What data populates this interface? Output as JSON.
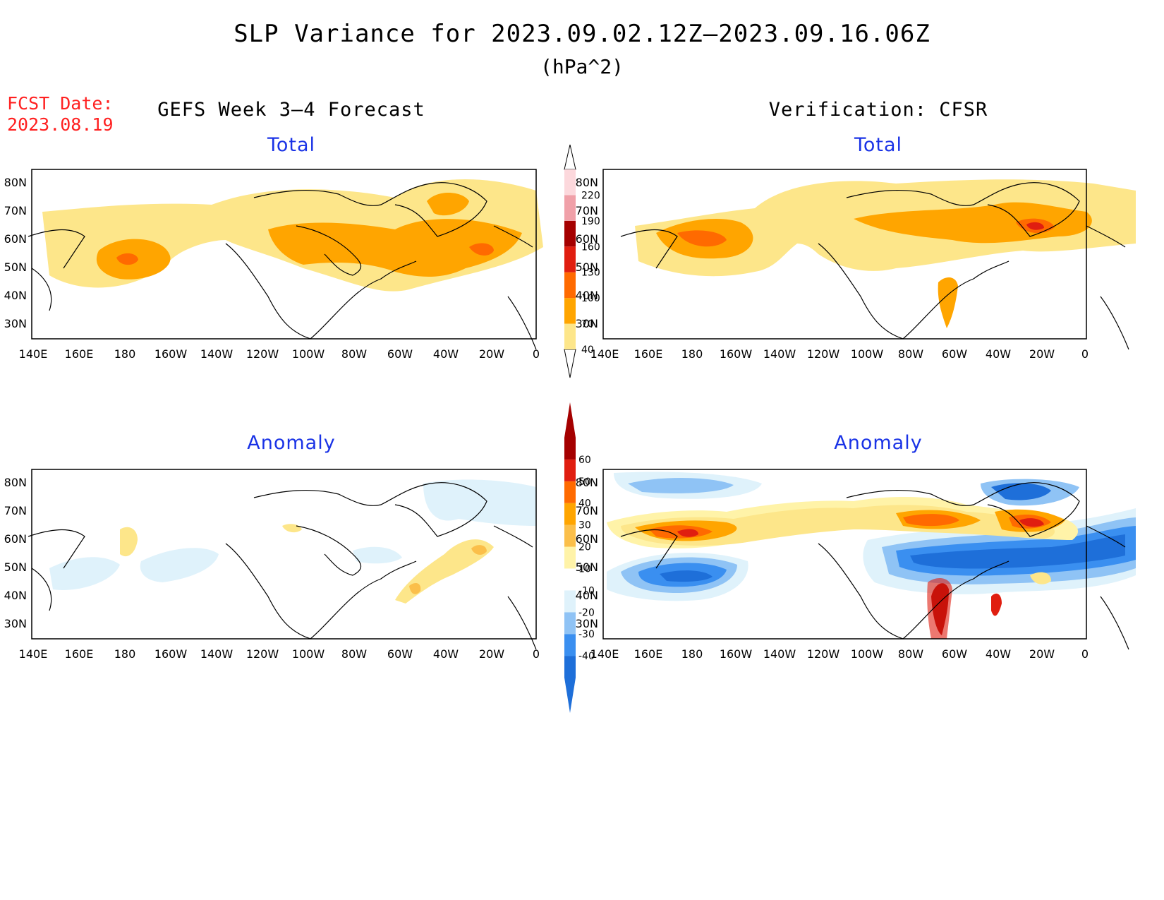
{
  "title": "SLP Variance for 2023.09.02.12Z–2023.09.16.06Z",
  "units": "(hPa^2)",
  "fcst_date": {
    "label": "FCST Date:",
    "value": "2023.08.19"
  },
  "columns": {
    "left": "GEFS Week 3–4 Forecast",
    "right": "Verification: CFSR"
  },
  "panels": {
    "top_left": {
      "label": "Total"
    },
    "top_right": {
      "label": "Total"
    },
    "bottom_left": {
      "label": "Anomaly"
    },
    "bottom_right": {
      "label": "Anomaly"
    }
  },
  "axes": {
    "lon_ticks": [
      "140E",
      "160E",
      "180",
      "160W",
      "140W",
      "120W",
      "100W",
      "80W",
      "60W",
      "40W",
      "20W",
      "0"
    ],
    "lat_ticks": [
      "80N",
      "70N",
      "60N",
      "50N",
      "40N",
      "30N"
    ],
    "lon_range_deg_east": [
      140,
      360
    ],
    "lat_range": [
      25,
      85
    ]
  },
  "colorbar_total": {
    "levels": [
      "40",
      "70",
      "100",
      "130",
      "160",
      "190",
      "220"
    ],
    "colors": [
      "#fde68a",
      "#ffa500",
      "#ff6a00",
      "#e01e10",
      "#a50000",
      "#f0a0a8",
      "#fcd8dc"
    ]
  },
  "colorbar_anomaly": {
    "levels": [
      "-40",
      "-30",
      "-20",
      "-10",
      "10",
      "20",
      "30",
      "40",
      "50",
      "60"
    ],
    "colors_below": [
      "#1e6fd9",
      "#1e6fd9",
      "#3a8ff0",
      "#8fc3f5",
      "#dff2fb"
    ],
    "colors_above": [
      "#fff3a8",
      "#fde68a",
      "#fbbf4a",
      "#ffa500",
      "#ff6a00",
      "#e01e10",
      "#a50000"
    ]
  },
  "colors": {
    "total_40": "#fde68a",
    "total_70": "#ffa500",
    "total_100": "#ff6a00",
    "anom_pos10": "#fff3a8",
    "anom_pos20": "#fde68a",
    "anom_pos30": "#fbbf4a",
    "anom_pos40": "#ffa500",
    "anom_pos50": "#ff6a00",
    "anom_pos60": "#e01e10",
    "anom_max": "#a50000",
    "anom_neg10": "#dff2fb",
    "anom_neg20": "#8fc3f5",
    "anom_neg30": "#3a8ff0",
    "anom_neg40": "#1e6fd9"
  }
}
